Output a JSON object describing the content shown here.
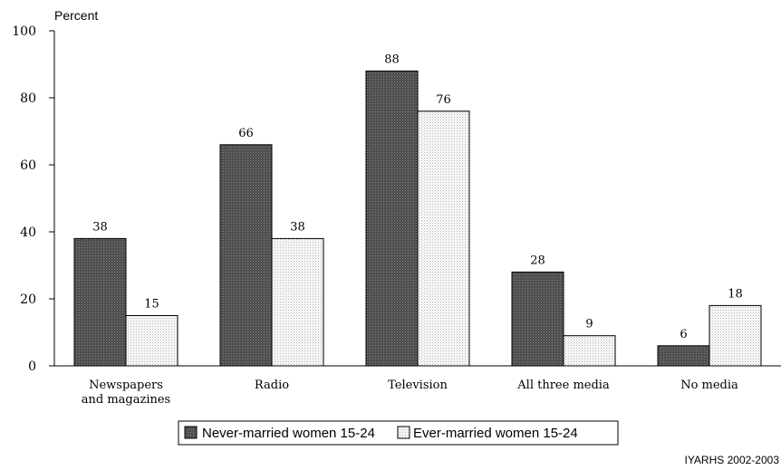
{
  "chart_data": {
    "type": "bar",
    "ylabel": "Percent",
    "ylim": [
      0,
      100
    ],
    "yticks": [
      0,
      20,
      40,
      60,
      80,
      100
    ],
    "categories": [
      [
        "Newspapers",
        "and magazines"
      ],
      [
        "Radio"
      ],
      [
        "Television"
      ],
      [
        "All three media"
      ],
      [
        "No media"
      ]
    ],
    "series": [
      {
        "name": "Never-married women 15-24",
        "values": [
          38,
          66,
          88,
          28,
          6
        ],
        "color": "#555555"
      },
      {
        "name": "Ever-married women 15-24",
        "values": [
          15,
          38,
          76,
          9,
          18
        ],
        "color": "#f2f2f2"
      }
    ],
    "data_labels": true,
    "legend_position": "bottom",
    "grid": false,
    "source": "IYARHS 2002-2003"
  }
}
